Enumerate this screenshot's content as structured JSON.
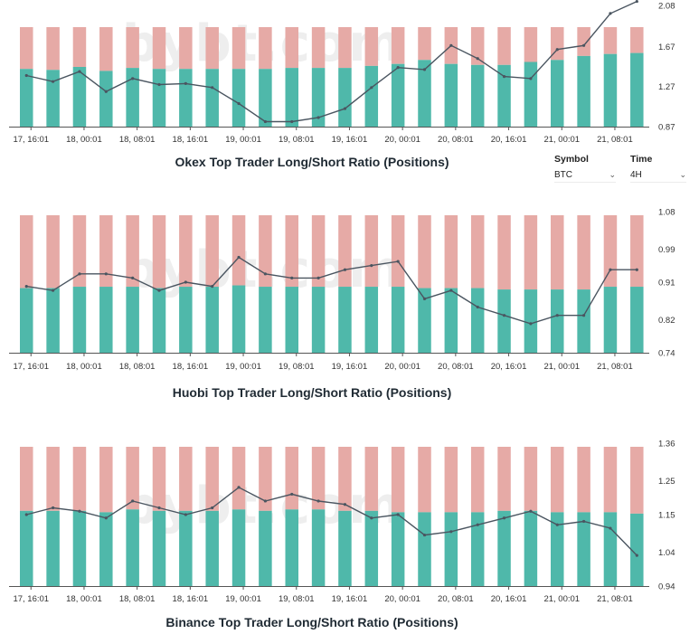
{
  "watermark": "bybt.com",
  "controls": {
    "symbol_label": "Symbol",
    "symbol_value": "BTC",
    "time_label": "Time",
    "time_value": "4H"
  },
  "colors": {
    "long": "#4fb8aa",
    "short": "#e6aaa6",
    "ratio_line": "#4a5560"
  },
  "chart_data": [
    {
      "type": "bar",
      "title": "Okex Top Trader Long/Short Ratio (Positions)",
      "xlabel": "",
      "ylabel": "",
      "x_tick_labels": [
        "17, 16:01",
        "18, 00:01",
        "18, 08:01",
        "18, 16:01",
        "19, 00:01",
        "19, 08:01",
        "19, 16:01",
        "20, 00:01",
        "20, 08:01",
        "20, 16:01",
        "21, 00:01",
        "21, 08:01"
      ],
      "y_ticks": [
        0.87,
        1.27,
        1.67,
        2.08
      ],
      "ylim": [
        0.87,
        2.08
      ],
      "long_pct": [
        58,
        57,
        60,
        56,
        59,
        58,
        58,
        58,
        58,
        58,
        59,
        59,
        59,
        61,
        63,
        67,
        63,
        62,
        62,
        65,
        67,
        71,
        73,
        74
      ],
      "ratio": [
        1.38,
        1.32,
        1.42,
        1.22,
        1.35,
        1.29,
        1.3,
        1.26,
        1.1,
        0.92,
        0.92,
        0.96,
        1.05,
        1.26,
        1.46,
        1.44,
        1.68,
        1.55,
        1.37,
        1.35,
        1.64,
        1.68,
        2.0,
        2.12
      ]
    },
    {
      "type": "bar",
      "title": "Huobi Top Trader Long/Short Ratio (Positions)",
      "xlabel": "",
      "ylabel": "",
      "x_tick_labels": [
        "17, 16:01",
        "18, 00:01",
        "18, 08:01",
        "18, 16:01",
        "19, 00:01",
        "19, 08:01",
        "19, 16:01",
        "20, 00:01",
        "20, 08:01",
        "20, 16:01",
        "21, 00:01",
        "21, 08:01"
      ],
      "y_ticks": [
        0.74,
        0.82,
        0.91,
        0.99,
        1.08
      ],
      "ylim": [
        0.74,
        1.08
      ],
      "long_pct": [
        47,
        47,
        48,
        48,
        48,
        47,
        48,
        48,
        49,
        48,
        48,
        48,
        48,
        48,
        48,
        47,
        47,
        47,
        46,
        46,
        46,
        46,
        48,
        48
      ],
      "ratio": [
        0.9,
        0.89,
        0.93,
        0.93,
        0.92,
        0.89,
        0.91,
        0.9,
        0.97,
        0.93,
        0.92,
        0.92,
        0.94,
        0.95,
        0.96,
        0.87,
        0.89,
        0.85,
        0.83,
        0.81,
        0.83,
        0.83,
        0.94,
        0.94
      ]
    },
    {
      "type": "bar",
      "title": "Binance Top Trader Long/Short Ratio (Positions)",
      "xlabel": "",
      "ylabel": "",
      "x_tick_labels": [
        "17, 16:01",
        "18, 00:01",
        "18, 08:01",
        "18, 16:01",
        "19, 00:01",
        "19, 08:01",
        "19, 16:01",
        "20, 00:01",
        "20, 08:01",
        "20, 16:01",
        "21, 00:01",
        "21, 08:01"
      ],
      "y_ticks": [
        0.94,
        1.04,
        1.15,
        1.25,
        1.36
      ],
      "ylim": [
        0.94,
        1.36
      ],
      "long_pct": [
        54,
        54,
        54,
        53,
        55,
        54,
        54,
        54,
        55,
        54,
        55,
        55,
        54,
        54,
        53,
        53,
        53,
        53,
        54,
        54,
        53,
        53,
        53,
        52
      ],
      "ratio": [
        1.15,
        1.17,
        1.16,
        1.14,
        1.19,
        1.17,
        1.15,
        1.17,
        1.23,
        1.19,
        1.21,
        1.19,
        1.18,
        1.14,
        1.15,
        1.09,
        1.1,
        1.12,
        1.14,
        1.16,
        1.12,
        1.13,
        1.11,
        1.03
      ]
    }
  ]
}
